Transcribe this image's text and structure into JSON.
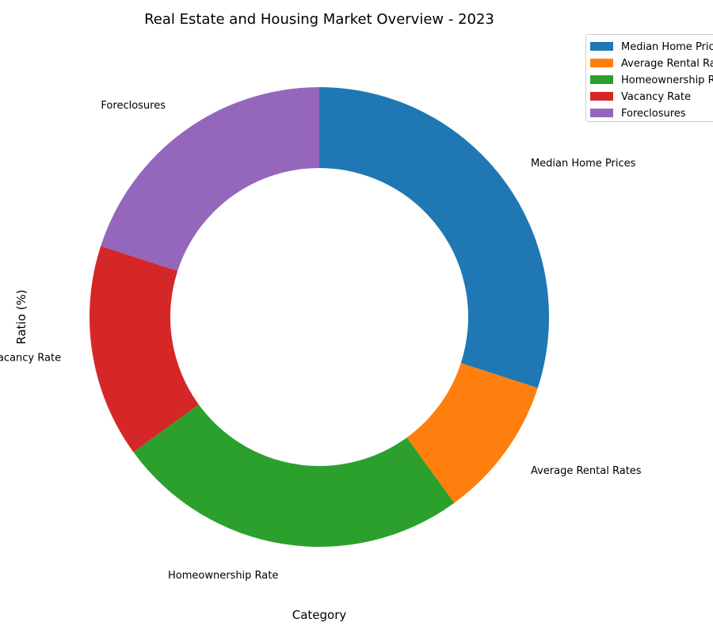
{
  "chart_data": {
    "type": "pie",
    "style": "donut",
    "title": "Real Estate and Housing Market Overview - 2023",
    "xlabel": "Category",
    "ylabel": "Ratio (%)",
    "categories": [
      "Median Home Prices",
      "Average Rental Rates",
      "Homeownership Rate",
      "Vacancy Rate",
      "Foreclosures"
    ],
    "values": [
      30,
      10,
      25,
      15,
      20
    ],
    "colors": [
      "#1f77b4",
      "#ff7f0e",
      "#2ca02c",
      "#d62728",
      "#9467bd"
    ],
    "legend_position": "top-right",
    "grid": false
  }
}
